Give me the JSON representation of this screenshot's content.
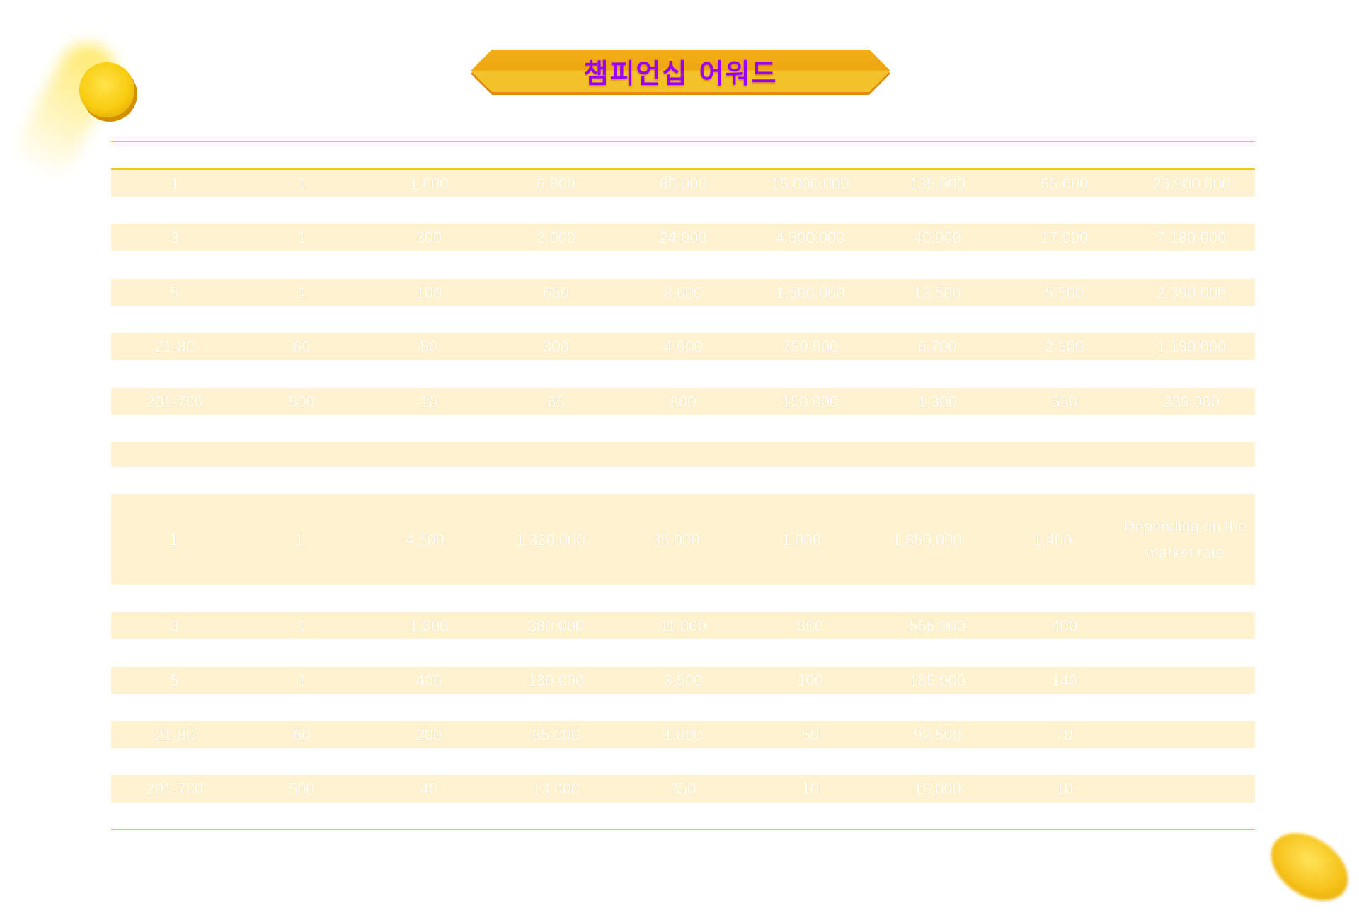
{
  "title": "챔피언십 어워드",
  "colors": {
    "title": "#9900ff",
    "banner": "#f2b31c",
    "row_shade": "#fef2d0",
    "rule": "#ffc21a",
    "cell_text": "#ffffff"
  },
  "decorations": [
    "gold-coin-icon",
    "gold-coin-icon"
  ],
  "section1": {
    "rows": [
      [
        "1",
        "1",
        "1,000",
        "6,800",
        "80,000",
        "15,000,000",
        "135,000",
        "55,000",
        "23,900,000"
      ],
      [
        "3",
        "1",
        "300",
        "2,000",
        "24,000",
        "4,500,000",
        "40,000",
        "17,000",
        "7,180,000"
      ],
      [
        "5",
        "1",
        "100",
        "650",
        "8,000",
        "1,500,000",
        "13,500",
        "5,500",
        "2,390,000"
      ],
      [
        "21-80",
        "60",
        "50",
        "300",
        "4,000",
        "750,000",
        "6,700",
        "2,500",
        "1,190,000"
      ],
      [
        "201-700",
        "500",
        "10",
        "65",
        "800",
        "150,000",
        "1,300",
        "550",
        "239,000"
      ]
    ]
  },
  "section2": {
    "rows": [
      [
        "1",
        "1",
        "4,500",
        "1,320,000",
        "35,000",
        "1,000",
        "1,850,000",
        "1,400",
        "Depending on the market rate"
      ],
      [
        "3",
        "1",
        "1,300",
        "380,000",
        "11,000",
        "300",
        "555,000",
        "400",
        ""
      ],
      [
        "5",
        "1",
        "400",
        "130,000",
        "3,500",
        "100",
        "185,000",
        "140",
        ""
      ],
      [
        "21-80",
        "60",
        "200",
        "65,000",
        "1,800",
        "50",
        "92,500",
        "70",
        ""
      ],
      [
        "201-700",
        "500",
        "40",
        "13,000",
        "350",
        "10",
        "18,000",
        "10",
        ""
      ]
    ]
  }
}
